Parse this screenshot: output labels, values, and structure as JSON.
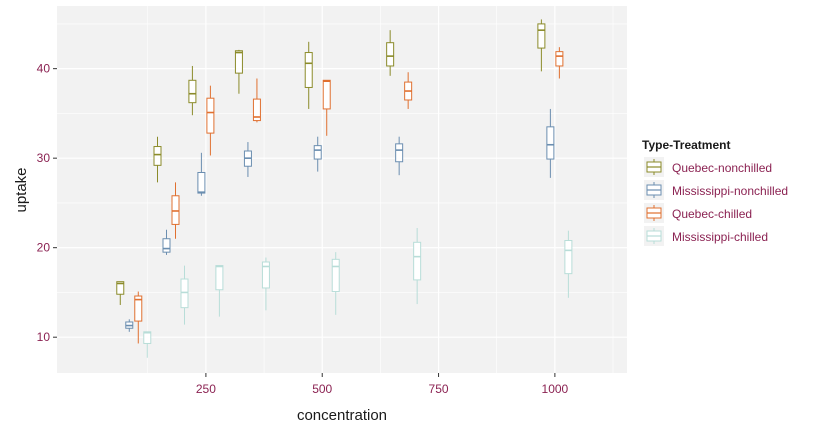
{
  "chart_data": {
    "type": "boxplot",
    "xlabel": "concentration",
    "ylabel": "uptake",
    "x_ticks": [
      "250",
      "500",
      "750",
      "1000"
    ],
    "y_ticks": [
      "10",
      "20",
      "30",
      "40"
    ],
    "xlim": [
      -70,
      1155
    ],
    "ylim": [
      6,
      47
    ],
    "grid": true,
    "legend_title": "Type-Treatment",
    "legend_position": "right",
    "tick_label_color": "#8B2252",
    "series": [
      {
        "name": "Quebec-nonchilled",
        "color": "#8B8B2A",
        "boxes": [
          {
            "x": 95,
            "min": 13.6,
            "q1": 14.8,
            "median": 16.0,
            "q3": 16.2,
            "max": 16.2
          },
          {
            "x": 175,
            "min": 27.3,
            "q1": 29.2,
            "median": 30.4,
            "q3": 31.3,
            "max": 32.4
          },
          {
            "x": 250,
            "min": 34.8,
            "q1": 36.2,
            "median": 37.2,
            "q3": 38.7,
            "max": 40.3
          },
          {
            "x": 350,
            "min": 37.2,
            "q1": 39.5,
            "median": 41.8,
            "q3": 42.0,
            "max": 42.1
          },
          {
            "x": 500,
            "min": 35.5,
            "q1": 37.9,
            "median": 40.6,
            "q3": 41.8,
            "max": 43.0
          },
          {
            "x": 675,
            "min": 39.2,
            "q1": 40.3,
            "median": 41.4,
            "q3": 42.9,
            "max": 44.3
          },
          {
            "x": 1000,
            "min": 39.7,
            "q1": 42.3,
            "median": 44.3,
            "q3": 45.0,
            "max": 45.5
          }
        ]
      },
      {
        "name": "Mississippi-nonchilled",
        "color": "#6B8EB0",
        "boxes": [
          {
            "x": 95,
            "min": 10.6,
            "q1": 11.0,
            "median": 11.3,
            "q3": 11.7,
            "max": 12.0
          },
          {
            "x": 175,
            "min": 19.2,
            "q1": 19.5,
            "median": 19.9,
            "q3": 21.0,
            "max": 22.0
          },
          {
            "x": 250,
            "min": 25.8,
            "q1": 26.1,
            "median": 26.2,
            "q3": 28.4,
            "max": 30.6
          },
          {
            "x": 350,
            "min": 27.9,
            "q1": 29.1,
            "median": 30.0,
            "q3": 30.8,
            "max": 31.8
          },
          {
            "x": 500,
            "min": 28.5,
            "q1": 29.9,
            "median": 30.9,
            "q3": 31.4,
            "max": 32.4
          },
          {
            "x": 675,
            "min": 28.1,
            "q1": 29.6,
            "median": 30.9,
            "q3": 31.6,
            "max": 32.4
          },
          {
            "x": 1000,
            "min": 27.8,
            "q1": 29.9,
            "median": 31.5,
            "q3": 33.5,
            "max": 35.5
          }
        ]
      },
      {
        "name": "Quebec-chilled",
        "color": "#E07030",
        "boxes": [
          {
            "x": 95,
            "min": 9.3,
            "q1": 11.8,
            "median": 14.2,
            "q3": 14.6,
            "max": 15.1
          },
          {
            "x": 175,
            "min": 21.0,
            "q1": 22.6,
            "median": 24.1,
            "q3": 25.8,
            "max": 27.3
          },
          {
            "x": 250,
            "min": 30.3,
            "q1": 32.8,
            "median": 35.1,
            "q3": 36.7,
            "max": 38.1
          },
          {
            "x": 350,
            "min": 34.0,
            "q1": 34.2,
            "median": 34.6,
            "q3": 36.6,
            "max": 38.9
          },
          {
            "x": 500,
            "min": 32.5,
            "q1": 35.5,
            "median": 38.6,
            "q3": 38.7,
            "max": 38.7
          },
          {
            "x": 675,
            "min": 35.5,
            "q1": 36.5,
            "median": 37.5,
            "q3": 38.5,
            "max": 39.6
          },
          {
            "x": 1000,
            "min": 38.9,
            "q1": 40.3,
            "median": 41.4,
            "q3": 41.9,
            "max": 42.4
          }
        ]
      },
      {
        "name": "Mississippi-chilled",
        "color": "#B8DDD8",
        "boxes": [
          {
            "x": 95,
            "min": 7.7,
            "q1": 9.3,
            "median": 10.5,
            "q3": 10.6,
            "max": 10.6
          },
          {
            "x": 175,
            "min": 11.4,
            "q1": 13.3,
            "median": 15.0,
            "q3": 16.5,
            "max": 18.0
          },
          {
            "x": 250,
            "min": 12.3,
            "q1": 15.3,
            "median": 17.9,
            "q3": 18.0,
            "max": 18.0
          },
          {
            "x": 350,
            "min": 13.0,
            "q1": 15.5,
            "median": 17.9,
            "q3": 18.4,
            "max": 18.9
          },
          {
            "x": 500,
            "min": 12.5,
            "q1": 15.1,
            "median": 17.9,
            "q3": 18.7,
            "max": 19.5
          },
          {
            "x": 675,
            "min": 13.7,
            "q1": 16.4,
            "median": 19.0,
            "q3": 20.6,
            "max": 22.2
          },
          {
            "x": 1000,
            "min": 14.4,
            "q1": 17.1,
            "median": 19.7,
            "q3": 20.8,
            "max": 21.9
          }
        ]
      }
    ]
  }
}
